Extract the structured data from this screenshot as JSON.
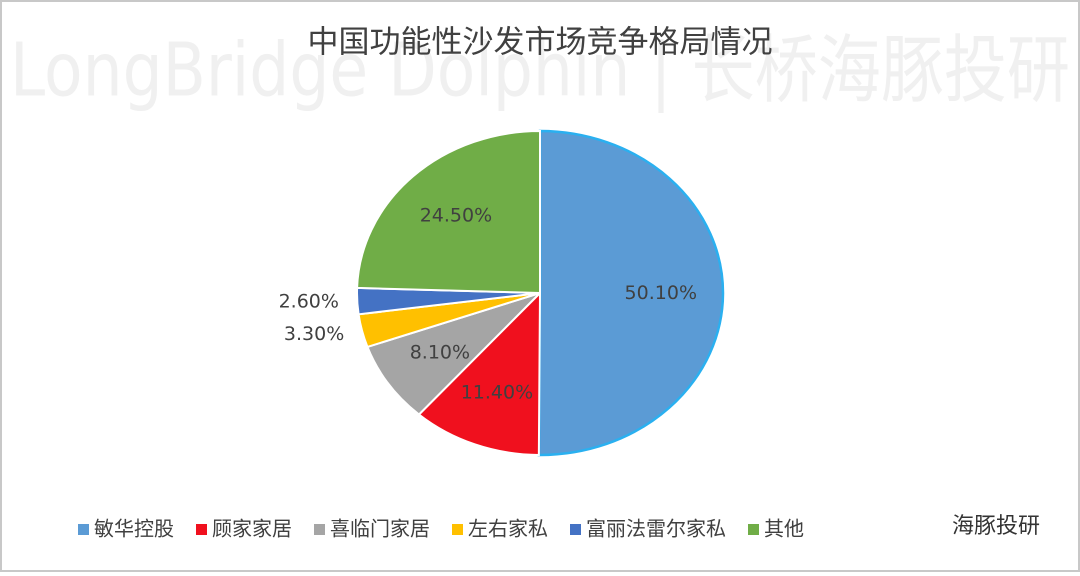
{
  "chart_data": {
    "type": "pie",
    "title": "中国功能性沙发市场竞争格局情况",
    "watermark": "LongBridge Dolphin | 长桥海豚投研",
    "badge": "海豚投研",
    "categories": [
      "敏华控股",
      "顾家家居",
      "喜临门家居",
      "左右家私",
      "富丽法雷尔家私",
      "其他"
    ],
    "values": [
      50.1,
      11.4,
      8.1,
      3.3,
      2.6,
      24.5
    ],
    "value_labels": [
      "50.10%",
      "11.40%",
      "8.10%",
      "3.30%",
      "2.60%",
      "24.50%"
    ],
    "colors": [
      "#5b9bd5",
      "#f0101e",
      "#a5a5a5",
      "#ffc000",
      "#4472c4",
      "#70ad47"
    ],
    "legend": "bottom"
  }
}
